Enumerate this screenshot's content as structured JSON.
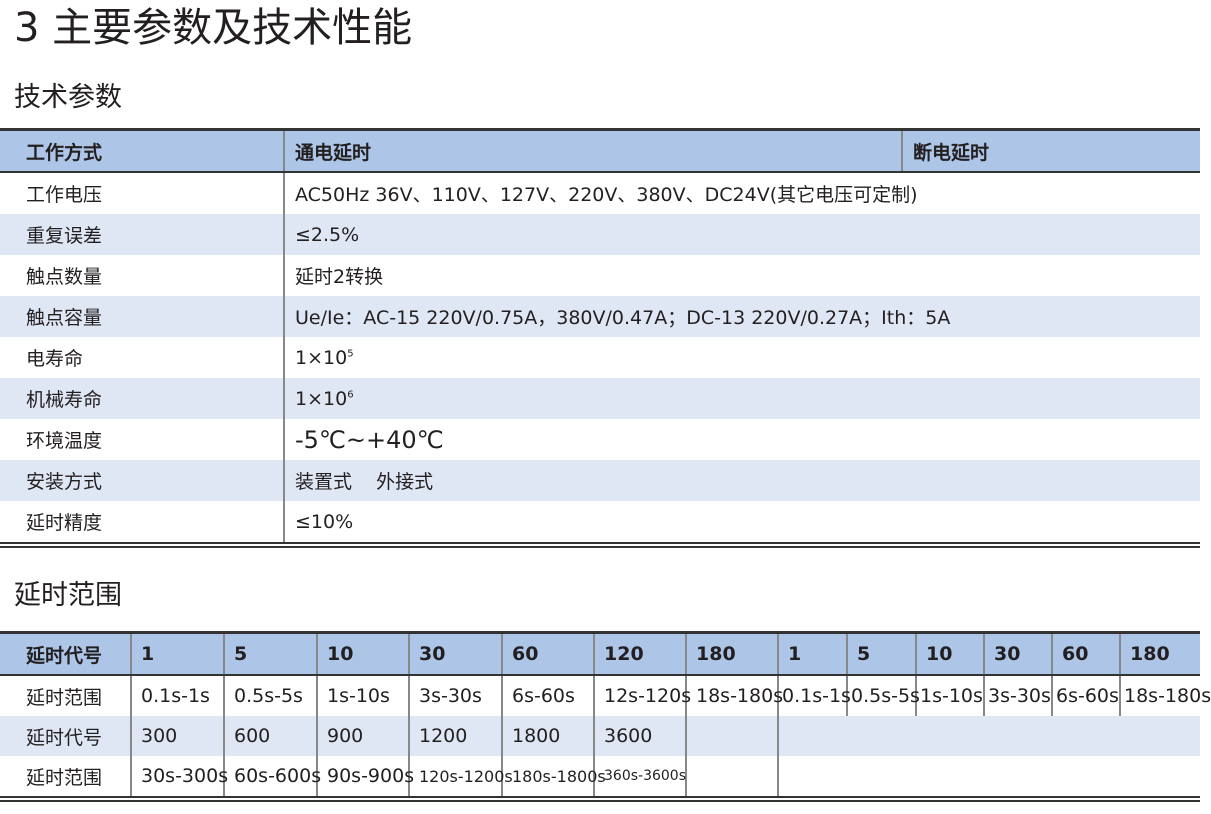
{
  "title": "3 主要参数及技术性能",
  "section1": "技术参数",
  "params": {
    "header": [
      "工作方式",
      "通电延时",
      "断电延时"
    ],
    "rows": [
      [
        "工作电压",
        "AC50Hz  36V、110V、127V、220V、380V、DC24V(其它电压可定制)"
      ],
      [
        "重复误差",
        "≤2.5%"
      ],
      [
        "触点数量",
        "延时2转换"
      ],
      [
        "触点容量",
        "Ue/Ie：AC-15 220V/0.75A，380V/0.47A；DC-13 220V/0.27A；Ith：5A"
      ],
      [
        "电寿命",
        "1×10",
        "5"
      ],
      [
        "机械寿命",
        "1×10",
        "6"
      ],
      [
        "环境温度",
        "-5℃~+40℃"
      ],
      [
        "安装方式",
        "装置式    外接式"
      ],
      [
        "延时精度",
        "≤10%"
      ]
    ]
  },
  "section2": "延时范围",
  "delay": {
    "header": [
      "延时代号",
      "1",
      "5",
      "10",
      "30",
      "60",
      "120",
      "180",
      "1",
      "5",
      "10",
      "30",
      "60",
      "180"
    ],
    "row1": [
      "延时范围",
      "0.1s-1s",
      "0.5s-5s",
      "1s-10s",
      "3s-30s",
      "6s-60s",
      "12s-120s",
      "18s-180s",
      "0.1s-1s",
      "0.5s-5s",
      "1s-10s",
      "3s-30s",
      "6s-60s",
      "18s-180s"
    ],
    "row2": [
      "延时代号",
      "300",
      "600",
      "900",
      "1200",
      "1800",
      "3600"
    ],
    "row3": [
      "延时范围",
      "30s-300s",
      "60s-600s",
      "90s-900s",
      "120s-1200s",
      "180s-1800s",
      "360s-3600s"
    ]
  }
}
